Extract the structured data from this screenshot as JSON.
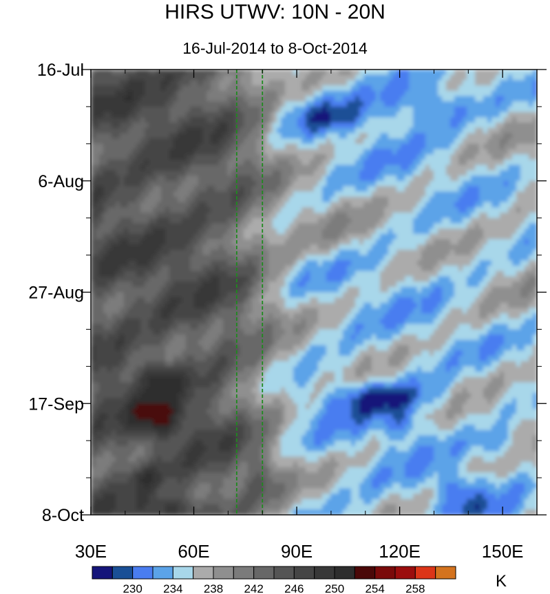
{
  "chart_data": {
    "type": "heatmap",
    "title": "HIRS UTWV: 10N - 20N",
    "subtitle": "16-Jul-2014 to 8-Oct-2014",
    "x_ticks": [
      {
        "value": 30,
        "label": "30E"
      },
      {
        "value": 60,
        "label": "60E"
      },
      {
        "value": 90,
        "label": "90E"
      },
      {
        "value": 120,
        "label": "120E"
      },
      {
        "value": 150,
        "label": "150E"
      }
    ],
    "xlim": [
      30,
      160
    ],
    "y_ticks": [
      {
        "value": 0,
        "label": "16-Jul"
      },
      {
        "value": 21,
        "label": "6-Aug"
      },
      {
        "value": 42,
        "label": "27-Aug"
      },
      {
        "value": 63,
        "label": "17-Sep"
      },
      {
        "value": 84,
        "label": "8-Oct"
      }
    ],
    "ylim": [
      0,
      84
    ],
    "reference_lines": [
      {
        "orientation": "vertical",
        "value": 72.5,
        "style": "dashed",
        "color": "#1e8a1e"
      },
      {
        "orientation": "vertical",
        "value": 80,
        "style": "dashed",
        "color": "#1e8a1e"
      }
    ],
    "colorbar": {
      "unit": "K",
      "levels": [
        228,
        230,
        232,
        234,
        236,
        238,
        240,
        242,
        244,
        246,
        248,
        250,
        252,
        254,
        256,
        258
      ],
      "labels": [
        "230",
        "234",
        "238",
        "242",
        "246",
        "250",
        "254",
        "258"
      ],
      "colors": [
        "#15157a",
        "#1a4f96",
        "#4a7df0",
        "#5ba3e8",
        "#a8d7ea",
        "#ababab",
        "#8f8f8f",
        "#7b7b7b",
        "#676767",
        "#555555",
        "#454545",
        "#383838",
        "#2d2d2d",
        "#4a0808",
        "#7a0a0a",
        "#9b0d0d",
        "#dc3518",
        "#d4731e"
      ]
    },
    "grid": false
  }
}
